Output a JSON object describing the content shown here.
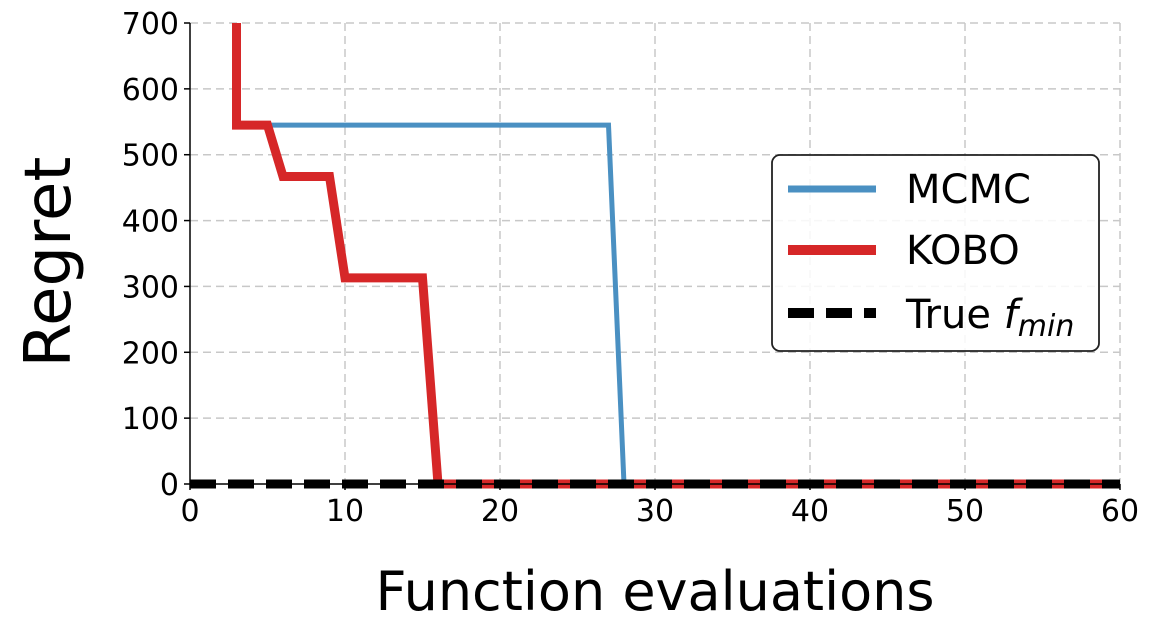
{
  "chart_data": {
    "type": "line",
    "xlabel": "Function evaluations",
    "ylabel": "Regret",
    "xlim": [
      0,
      60
    ],
    "ylim": [
      0,
      700
    ],
    "xticks": [
      0,
      10,
      20,
      30,
      40,
      50,
      60
    ],
    "yticks": [
      0,
      100,
      200,
      300,
      400,
      500,
      600,
      700
    ],
    "grid": true,
    "legend_position": "center-right",
    "series": [
      {
        "name": "MCMC",
        "color": "#4a90c2",
        "style": "solid",
        "x": [
          5,
          27,
          28,
          60
        ],
        "y": [
          545,
          545,
          0,
          0
        ]
      },
      {
        "name": "KOBO",
        "color": "#d62728",
        "style": "solid",
        "x": [
          3,
          3,
          5,
          6,
          9,
          10,
          15,
          16,
          60
        ],
        "y": [
          700,
          545,
          545,
          467,
          467,
          313,
          313,
          0,
          0
        ]
      },
      {
        "name": "True f_min",
        "legend_prefix": "True ",
        "legend_math_base": "f",
        "legend_math_sub": "min",
        "color": "#000000",
        "style": "dashed",
        "x": [
          0,
          60
        ],
        "y": [
          0,
          0
        ]
      }
    ]
  }
}
